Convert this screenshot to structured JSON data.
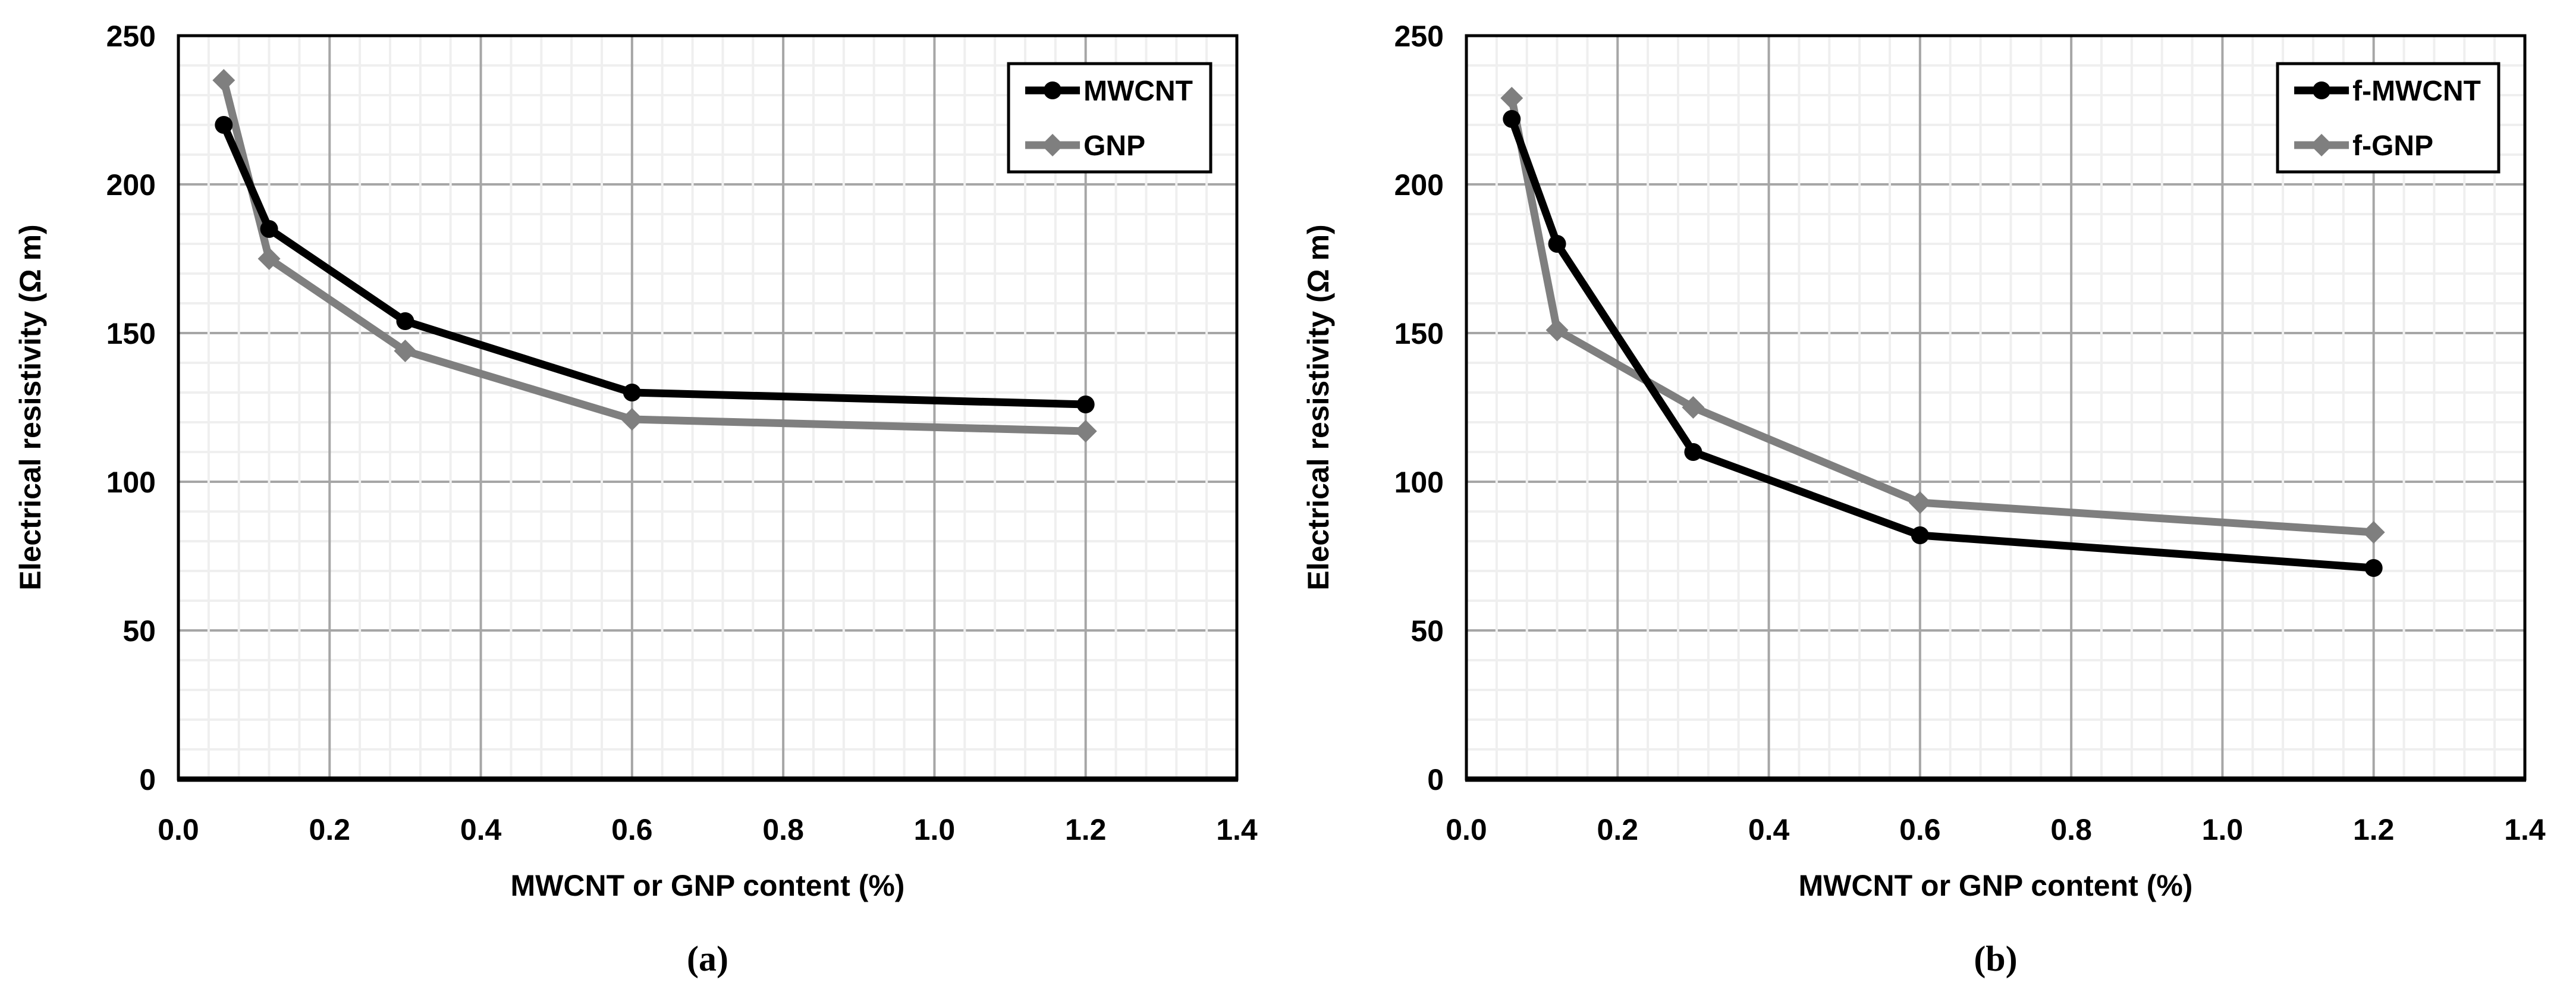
{
  "figure": {
    "background": "#ffffff"
  },
  "colors": {
    "series_black": "#000000",
    "series_gray": "#7f7f7f",
    "grid_major": "#a6a6a6",
    "grid_minor": "#efefef",
    "plot_border": "#000000",
    "background": "#ffffff"
  },
  "chart_data": [
    {
      "type": "line",
      "caption": "(a)",
      "xlabel": "MWCNT or GNP content (%)",
      "ylabel": "Electrical resistivity (Ω m)",
      "x": [
        0.06,
        0.12,
        0.3,
        0.6,
        1.2
      ],
      "xlim": [
        0,
        1.4
      ],
      "ylim": [
        0,
        250
      ],
      "x_ticks": [
        0.0,
        0.2,
        0.4,
        0.6,
        0.8,
        1.0,
        1.2,
        1.4
      ],
      "x_tick_labels": [
        "0.0",
        "0.2",
        "0.4",
        "0.6",
        "0.8",
        "1.0",
        "1.2",
        "1.4"
      ],
      "y_ticks": [
        0,
        50,
        100,
        150,
        200,
        250
      ],
      "y_tick_labels": [
        "0",
        "50",
        "100",
        "150",
        "200",
        "250"
      ],
      "x_minor_step": 0.04,
      "y_minor_step": 10,
      "grid": true,
      "legend_position": "top-right",
      "series": [
        {
          "name": "MWCNT",
          "color": "#000000",
          "marker": "circle",
          "values": [
            220,
            185,
            154,
            130,
            126
          ]
        },
        {
          "name": "GNP",
          "color": "#7f7f7f",
          "marker": "diamond",
          "values": [
            235,
            175,
            144,
            121,
            117
          ]
        }
      ]
    },
    {
      "type": "line",
      "caption": "(b)",
      "xlabel": "MWCNT or GNP content (%)",
      "ylabel": "Electrical resistivity (Ω m)",
      "x": [
        0.06,
        0.12,
        0.3,
        0.6,
        1.2
      ],
      "xlim": [
        0,
        1.4
      ],
      "ylim": [
        0,
        250
      ],
      "x_ticks": [
        0.0,
        0.2,
        0.4,
        0.6,
        0.8,
        1.0,
        1.2,
        1.4
      ],
      "x_tick_labels": [
        "0.0",
        "0.2",
        "0.4",
        "0.6",
        "0.8",
        "1.0",
        "1.2",
        "1.4"
      ],
      "y_ticks": [
        0,
        50,
        100,
        150,
        200,
        250
      ],
      "y_tick_labels": [
        "0",
        "50",
        "100",
        "150",
        "200",
        "250"
      ],
      "x_minor_step": 0.04,
      "y_minor_step": 10,
      "grid": true,
      "legend_position": "top-right",
      "series": [
        {
          "name": "f-MWCNT",
          "color": "#000000",
          "marker": "circle",
          "values": [
            222,
            180,
            110,
            82,
            71
          ]
        },
        {
          "name": "f-GNP",
          "color": "#7f7f7f",
          "marker": "diamond",
          "values": [
            229,
            151,
            125,
            93,
            83
          ]
        }
      ]
    }
  ]
}
